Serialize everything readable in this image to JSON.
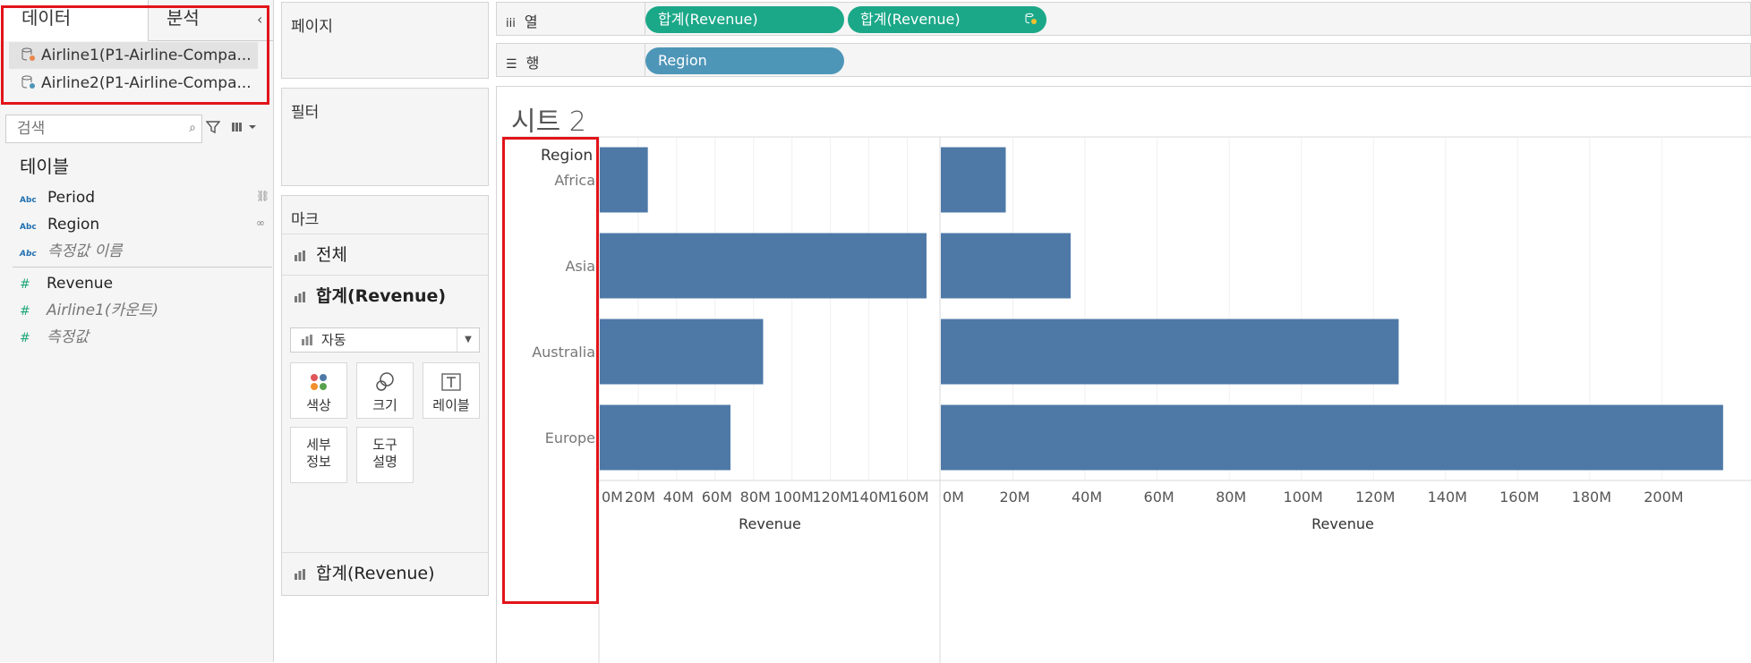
{
  "data_pane": {
    "tab_data": "데이터",
    "tab_analysis": "분석",
    "datasources": [
      "Airline1(P1-Airline-Compa...",
      "Airline2(P1-Airline-Compa..."
    ],
    "search_placeholder": "검색",
    "section_title": "테이블",
    "dimensions": [
      {
        "type": "Abc",
        "name": "Period"
      },
      {
        "type": "Abc",
        "name": "Region"
      },
      {
        "type": "Abc",
        "name": "측정값 이름"
      }
    ],
    "measures": [
      {
        "type": "#",
        "name": "Revenue"
      },
      {
        "type": "#",
        "name": "Airline1(카운트)"
      },
      {
        "type": "#",
        "name": "측정값"
      }
    ]
  },
  "shelves": {
    "pages": "페이지",
    "filters": "필터",
    "marks": "마크",
    "columns_label": "열",
    "rows_label": "행",
    "column_pills": [
      "합계(Revenue)",
      "합계(Revenue)"
    ],
    "row_pills": [
      "Region"
    ]
  },
  "marks_card": {
    "all": "전체",
    "sum1": "합계(Revenue)",
    "sum2": "합계(Revenue)",
    "mark_type": "자동",
    "color": "색상",
    "size": "크기",
    "label": "레이블",
    "detail_1": "세부",
    "detail_2": "정보",
    "tooltip_1": "도구",
    "tooltip_2": "설명"
  },
  "sheet_title": "시트 2",
  "chart_data": {
    "type": "bar",
    "orientation": "horizontal",
    "row_header": "Region",
    "categories": [
      "Africa",
      "Asia",
      "Australia",
      "Europe"
    ],
    "bar_color": "#4e79a7",
    "panes": [
      {
        "xlabel": "Revenue",
        "ticks": [
          "0M",
          "20M",
          "40M",
          "60M",
          "80M",
          "100M",
          "120M",
          "140M",
          "160M"
        ],
        "xlim": [
          0,
          177
        ],
        "values": [
          25,
          170,
          85,
          68
        ]
      },
      {
        "xlabel": "Revenue",
        "ticks": [
          "0M",
          "20M",
          "40M",
          "60M",
          "80M",
          "100M",
          "120M",
          "140M",
          "160M",
          "180M",
          "200M"
        ],
        "xlim": [
          0,
          223
        ],
        "values": [
          18,
          36,
          127,
          217
        ]
      }
    ]
  }
}
